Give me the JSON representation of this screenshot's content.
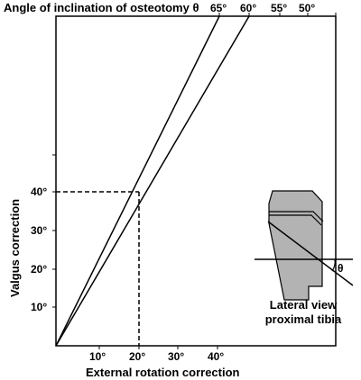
{
  "colors": {
    "ink": "#000000",
    "tibia_fill": "#b3b3b3",
    "background": "#ffffff"
  },
  "figure": {
    "top_axis": {
      "title": "Angle of inclination of osteotomy θ",
      "tick_labels": [
        "65°",
        "60°",
        "55°",
        "50°"
      ]
    },
    "x_axis": {
      "title": "External rotation correction",
      "tick_labels": [
        "10°",
        "20°",
        "30°",
        "40°"
      ]
    },
    "y_axis": {
      "title": "Valgus correction",
      "tick_labels": [
        "10°",
        "20°",
        "30°",
        "40°"
      ]
    },
    "inset": {
      "theta_symbol": "θ",
      "caption_line1": "Lateral view",
      "caption_line2": "proximal tibia"
    }
  },
  "chart_data": {
    "type": "line",
    "title": "",
    "xlabel": "External rotation correction",
    "ylabel": "Valgus correction",
    "top_xlabel": "Angle of inclination of osteotomy θ",
    "x_ticks": [
      10,
      20,
      30,
      40
    ],
    "y_ticks": [
      10,
      20,
      30,
      40
    ],
    "top_ticks": [
      65,
      60,
      55,
      50
    ],
    "series": [
      {
        "angle_deg": 65,
        "points": [
          [
            0,
            0
          ],
          [
            20,
            43
          ]
        ]
      },
      {
        "angle_deg": 60,
        "points": [
          [
            0,
            0
          ],
          [
            20,
            35
          ]
        ]
      }
    ],
    "reference_point": {
      "x": 20,
      "y": 40
    },
    "grid": false
  }
}
